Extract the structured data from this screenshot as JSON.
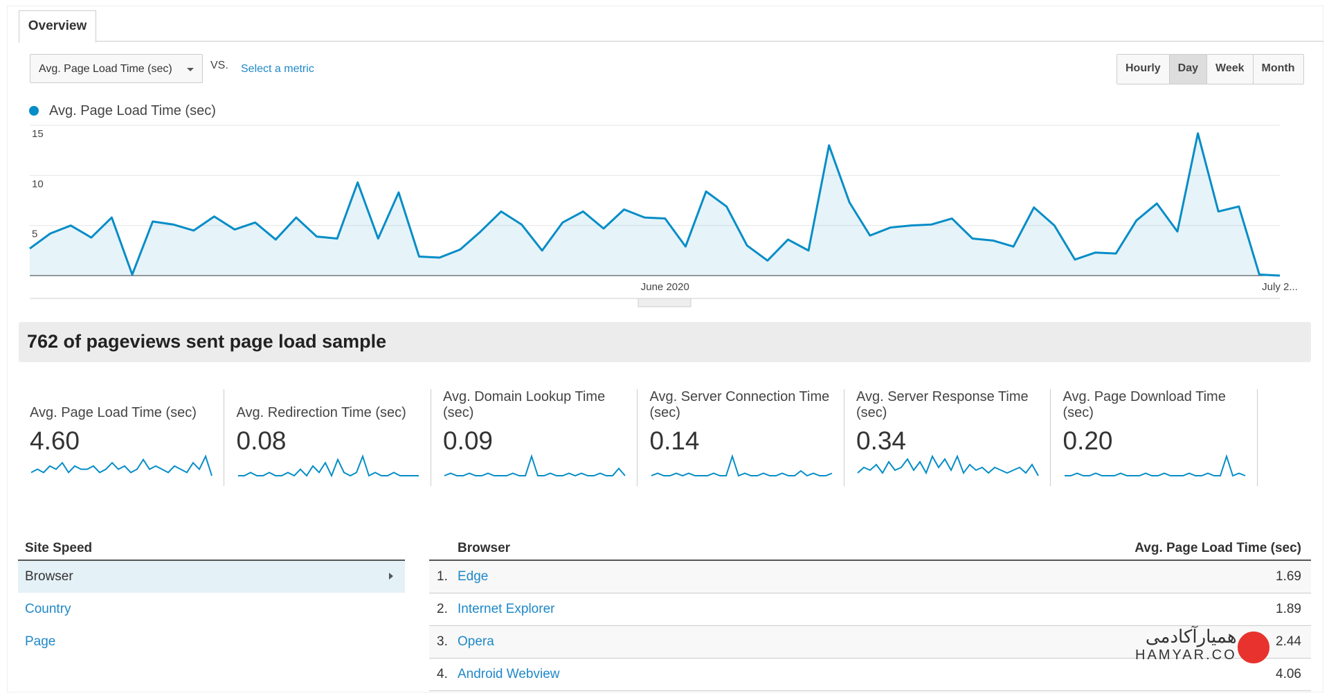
{
  "tabs": [
    "Overview"
  ],
  "metric_selector": "Avg. Page Load Time (sec)",
  "vs_label": "VS.",
  "select_metric": "Select a metric",
  "time_buttons": [
    "Hourly",
    "Day",
    "Week",
    "Month"
  ],
  "active_time_button": 1,
  "chart_data": {
    "type": "line",
    "categories": [
      null,
      null,
      null,
      null,
      null,
      null,
      null,
      null,
      null,
      null,
      null,
      null,
      null,
      null,
      null,
      null,
      null,
      null,
      null,
      null,
      null,
      null,
      null,
      null,
      null,
      null,
      null,
      null,
      null,
      null,
      null,
      "June 2020",
      null,
      null,
      null,
      null,
      null,
      null,
      null,
      null,
      null,
      null,
      null,
      null,
      null,
      null,
      null,
      null,
      null,
      null,
      null,
      null,
      null,
      null,
      null,
      null,
      null,
      null,
      null,
      null,
      null,
      "July 2..."
    ],
    "series": [
      {
        "name": "Avg. Page Load Time (sec)",
        "color": "#058dc7",
        "values": [
          2.7,
          4.2,
          5.0,
          3.8,
          5.8,
          0.1,
          5.4,
          5.1,
          4.5,
          5.9,
          4.6,
          5.3,
          3.6,
          5.8,
          3.9,
          3.7,
          9.3,
          3.7,
          8.3,
          1.9,
          1.8,
          2.6,
          4.4,
          6.4,
          5.1,
          2.5,
          5.3,
          6.4,
          4.7,
          6.6,
          5.8,
          5.7,
          2.9,
          8.4,
          6.9,
          3.0,
          1.5,
          3.6,
          2.5,
          13.0,
          7.3,
          4.0,
          4.8,
          5.0,
          5.1,
          5.7,
          3.7,
          3.5,
          2.9,
          6.8,
          5.0,
          1.6,
          2.3,
          2.2,
          5.5,
          7.2,
          4.4,
          14.2,
          6.4,
          6.9,
          0.1,
          0
        ]
      }
    ],
    "ylim": [
      0,
      15
    ],
    "yticks": [
      5,
      10,
      15
    ],
    "grid": true
  },
  "summary": "762 of pageviews sent page load sample",
  "metrics": [
    {
      "label": "Avg. Page Load Time (sec)",
      "value": "4.60",
      "spark": [
        3,
        4,
        3,
        5,
        4,
        6,
        3,
        5,
        4,
        4,
        5,
        3,
        4,
        6,
        4,
        5,
        3,
        4,
        7,
        4,
        5,
        4,
        3,
        5,
        4,
        3,
        6,
        4,
        8,
        2
      ]
    },
    {
      "label": "Avg. Redirection Time (sec)",
      "value": "0.08",
      "spark": [
        1,
        1,
        2,
        1,
        1,
        2,
        1,
        1,
        2,
        1,
        3,
        1,
        4,
        2,
        5,
        1,
        6,
        2,
        1,
        2,
        7,
        1,
        2,
        1,
        1,
        2,
        1,
        1,
        1,
        1
      ]
    },
    {
      "label": "Avg. Domain Lookup Time (sec)",
      "value": "0.09",
      "spark": [
        1,
        2,
        1,
        1,
        2,
        1,
        1,
        2,
        1,
        1,
        1,
        2,
        1,
        1,
        9,
        1,
        1,
        2,
        1,
        1,
        2,
        1,
        2,
        1,
        1,
        2,
        1,
        1,
        4,
        1
      ]
    },
    {
      "label": "Avg. Server Connection Time (sec)",
      "value": "0.14",
      "spark": [
        1,
        2,
        1,
        1,
        2,
        1,
        2,
        1,
        1,
        1,
        2,
        1,
        1,
        9,
        1,
        2,
        1,
        1,
        2,
        1,
        1,
        2,
        1,
        1,
        3,
        1,
        2,
        1,
        1,
        2
      ]
    },
    {
      "label": "Avg. Server Response Time (sec)",
      "value": "0.34",
      "spark": [
        3,
        5,
        4,
        6,
        3,
        7,
        4,
        5,
        8,
        4,
        7,
        3,
        9,
        5,
        8,
        4,
        9,
        3,
        6,
        4,
        5,
        3,
        5,
        4,
        3,
        4,
        5,
        3,
        6,
        2
      ]
    },
    {
      "label": "Avg. Page Download Time (sec)",
      "value": "0.20",
      "spark": [
        1,
        1,
        2,
        1,
        1,
        2,
        1,
        1,
        1,
        2,
        1,
        1,
        1,
        2,
        1,
        1,
        2,
        1,
        1,
        1,
        2,
        1,
        1,
        2,
        1,
        1,
        9,
        1,
        2,
        1
      ]
    }
  ],
  "site_speed": {
    "header": "Site Speed",
    "items": [
      "Browser",
      "Country",
      "Page"
    ],
    "selected": 0
  },
  "table": {
    "headers": [
      "Browser",
      "Avg. Page Load Time (sec)"
    ],
    "rows": [
      [
        "1.",
        "Edge",
        "1.69"
      ],
      [
        "2.",
        "Internet Explorer",
        "1.89"
      ],
      [
        "3.",
        "Opera",
        "2.44"
      ],
      [
        "4.",
        "Android Webview",
        "4.06"
      ]
    ]
  },
  "watermark": {
    "fa": "همیارآکادمی",
    "en": "HAMYAR.CO"
  }
}
